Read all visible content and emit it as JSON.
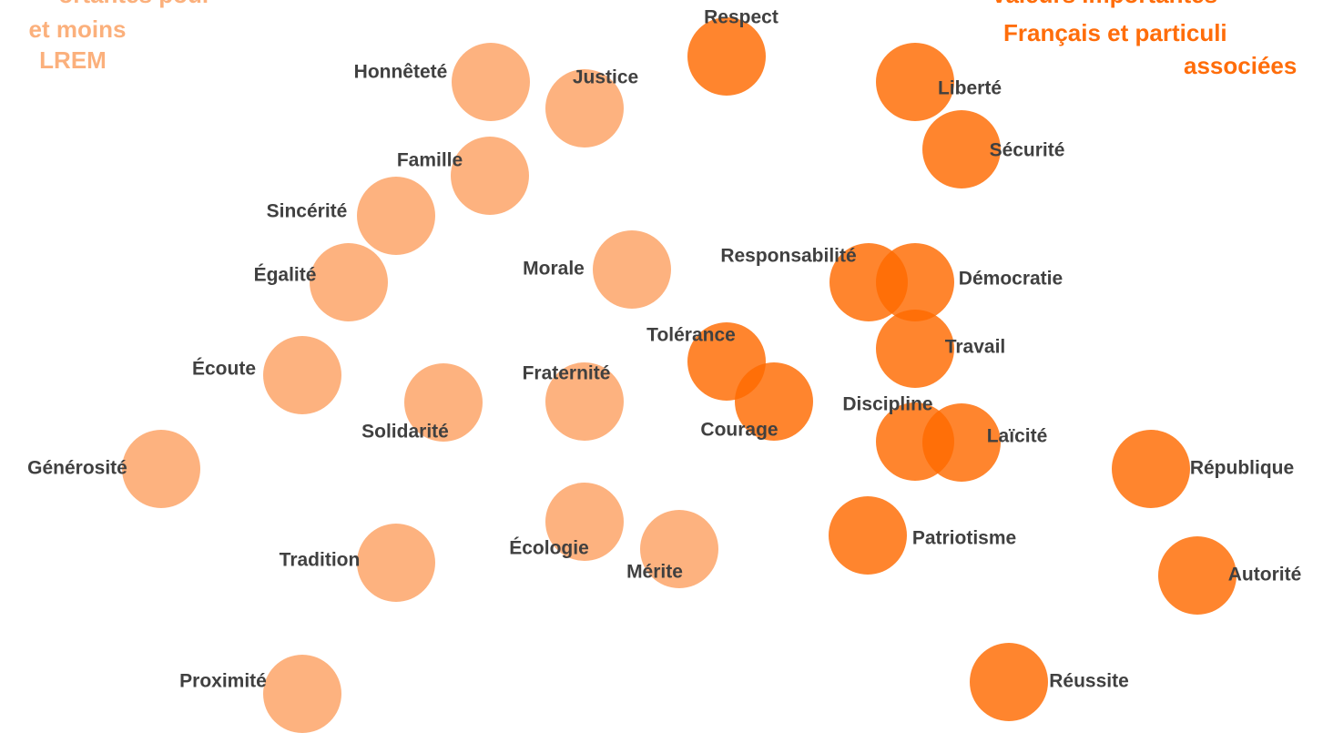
{
  "left_title": {
    "lines": [
      "ortantes pour",
      "et moins",
      "LREM"
    ],
    "color": "#fbb07c"
  },
  "right_title": {
    "lines": [
      "valeurs importantes",
      "Français et particuli",
      "associées"
    ],
    "color": "#ff6d0a"
  },
  "groups": [
    {
      "color": "#fdae78",
      "words": [
        "Honnêteté",
        "Justice",
        "Famille",
        "Sincérité",
        "Égalité",
        "Morale",
        "Écoute",
        "Solidarité",
        "Fraternité",
        "Générosité",
        "Tradition",
        "Écologie",
        "Mérite",
        "Proximité"
      ]
    },
    {
      "color": "#ff6a00",
      "words": [
        "Respect",
        "Liberté",
        "Sécurité",
        "Responsabilité",
        "Démocratie",
        "Travail",
        "Tolérance",
        "Courage",
        "Discipline",
        "Laïcité",
        "République",
        "Patriotisme",
        "Autorité",
        "Réussite"
      ]
    }
  ]
}
